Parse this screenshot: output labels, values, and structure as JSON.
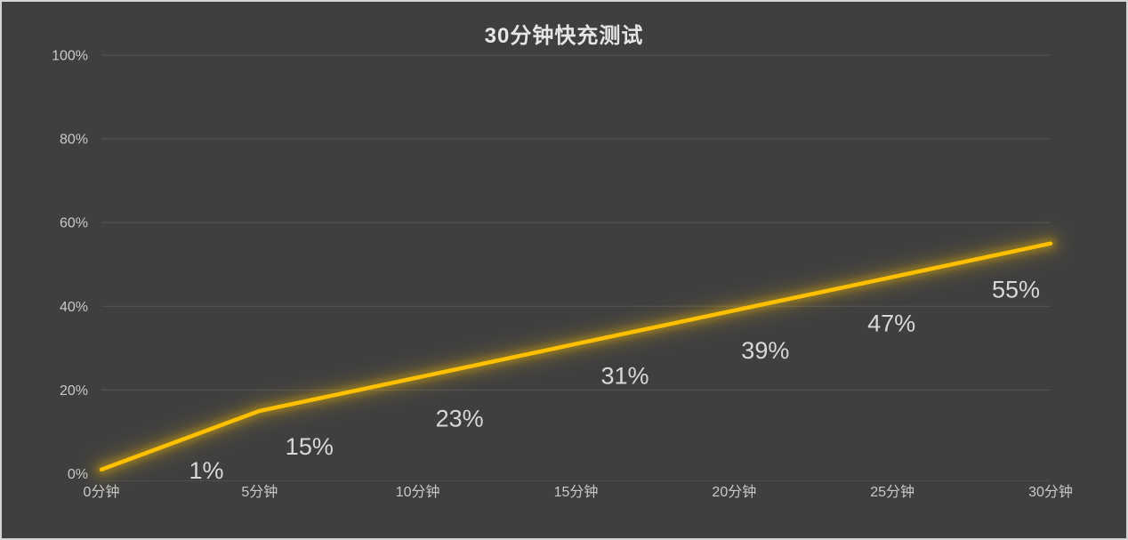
{
  "frame": {
    "background": "#3F3F3F",
    "border_color": "#D6D4D4"
  },
  "chart_data": {
    "type": "line",
    "title": "30分钟快充测试",
    "categories": [
      "0分钟",
      "5分钟",
      "10分钟",
      "15分钟",
      "20分钟",
      "25分钟",
      "30分钟"
    ],
    "values": [
      1,
      15,
      23,
      31,
      39,
      47,
      55
    ],
    "data_labels": [
      "1%",
      "15%",
      "23%",
      "31%",
      "39%",
      "47%",
      "55%"
    ],
    "xlabel": "",
    "ylabel": "",
    "ylim": [
      0,
      100
    ],
    "y_tick_values": [
      0,
      20,
      40,
      60,
      80,
      100
    ],
    "y_tick_labels": [
      "0%",
      "20%",
      "40%",
      "60%",
      "80%",
      "100%"
    ],
    "grid": true,
    "legend": "none",
    "line_color": "#FFC000",
    "glow_color": "#FFC000",
    "gridline_color": "#565656",
    "title_color": "#E6E6E6",
    "tick_label_color": "#C9C9C9",
    "data_label_color": "#D8D8D8"
  }
}
